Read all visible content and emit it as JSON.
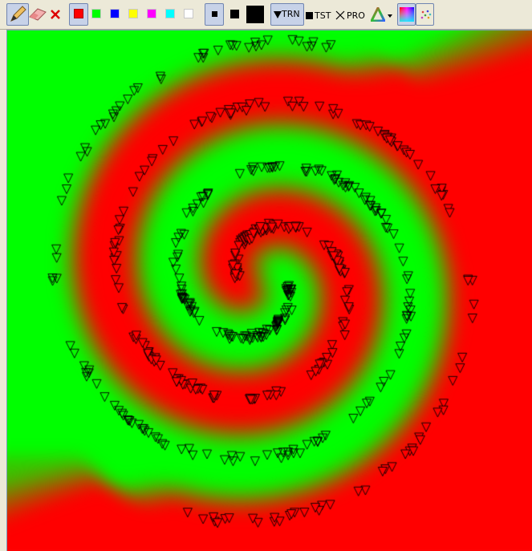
{
  "toolbar": {
    "tools": [
      {
        "name": "pencil-icon",
        "pressed": true
      },
      {
        "name": "eraser-icon",
        "pressed": false
      },
      {
        "name": "clear-icon",
        "pressed": false
      }
    ],
    "colors": [
      "#ff0000",
      "#00ff00",
      "#0000ff",
      "#ffff00",
      "#ff00ff",
      "#00ffff",
      "#ffffff"
    ],
    "selected_color": "#ff0000",
    "brush_sizes": [
      "small",
      "medium",
      "large"
    ],
    "selected_brush": "small",
    "layers": {
      "trn": "TRN",
      "tst": "TST",
      "pro": "PRO"
    }
  },
  "classes": {
    "red": "#ff0000",
    "green": "#00ff00"
  }
}
